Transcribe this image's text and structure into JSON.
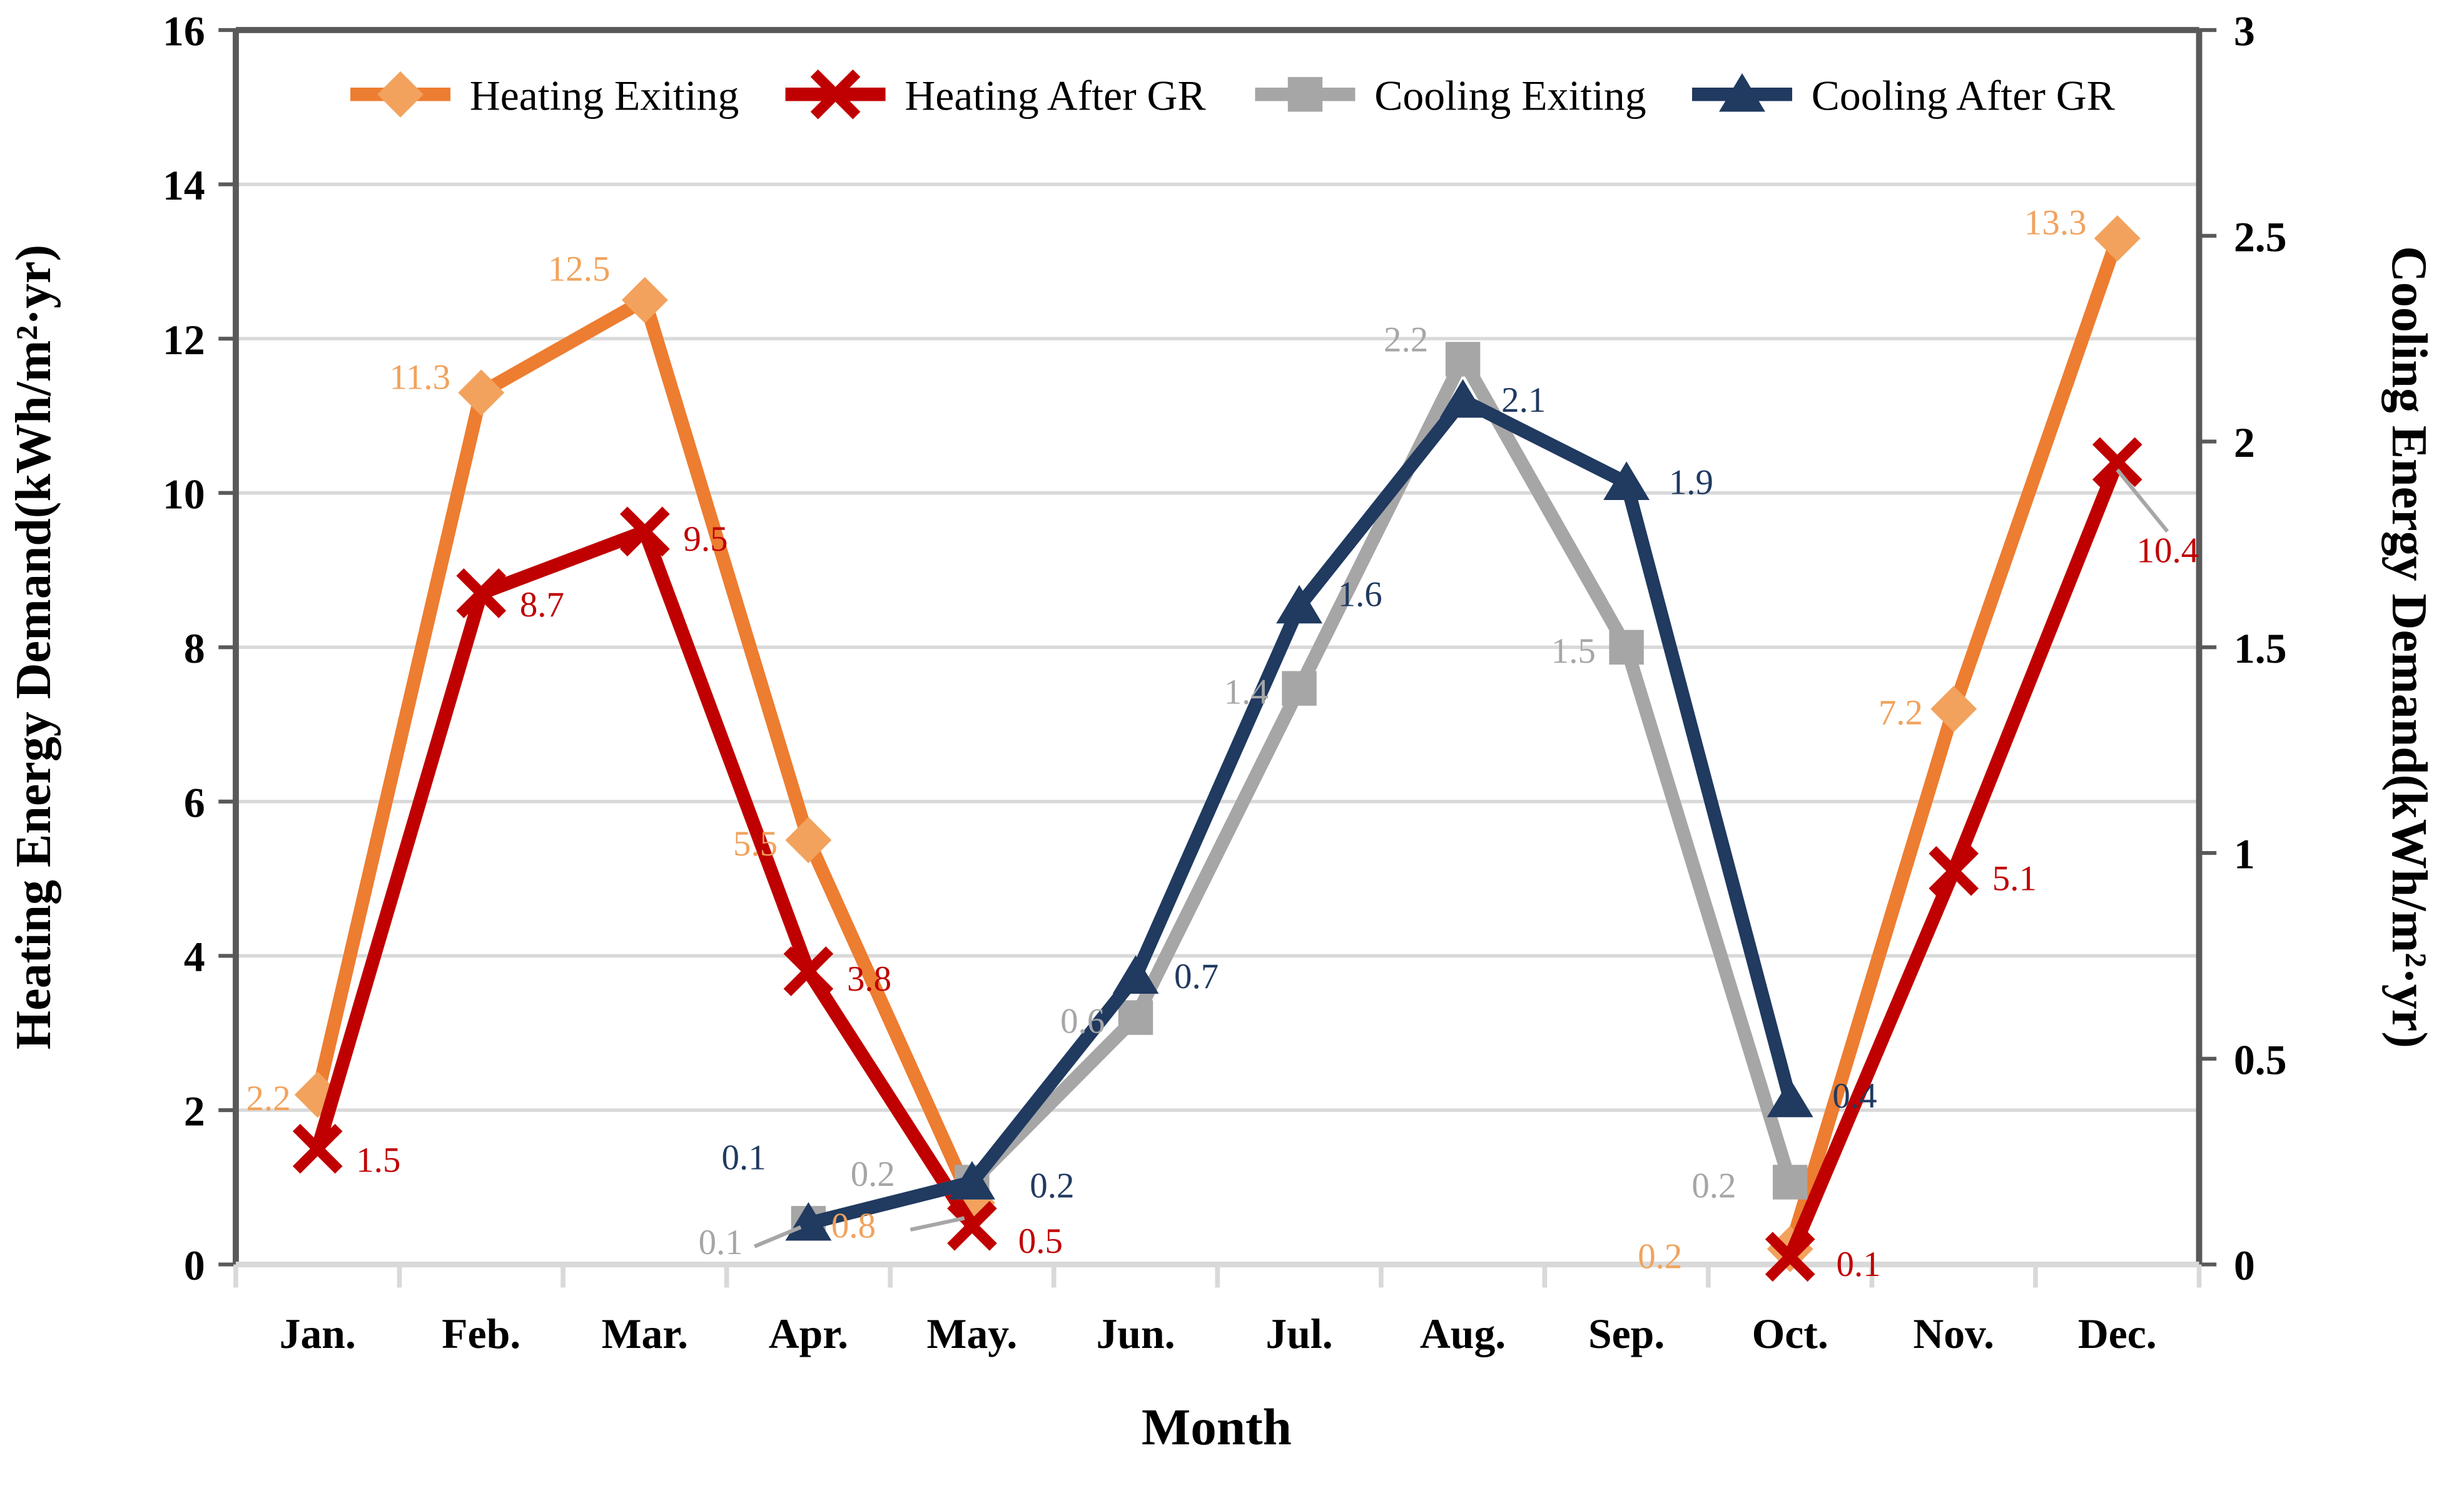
{
  "chart_data": {
    "type": "line",
    "xlabel": "Month",
    "categories": [
      "Jan.",
      "Feb.",
      "Mar.",
      "Apr.",
      "May.",
      "Jun.",
      "Jul.",
      "Aug.",
      "Sep.",
      "Oct.",
      "Nov.",
      "Dec."
    ],
    "left_axis": {
      "title": "Heating Energy Demand(kWh/m²·yr)",
      "min": 0,
      "max": 16,
      "step": 2,
      "tick_labels": [
        "0",
        "2",
        "4",
        "6",
        "8",
        "10",
        "12",
        "14",
        "16"
      ]
    },
    "right_axis": {
      "title": "Cooling Energy Demand(kWh/m²·yr)",
      "min": 0,
      "max": 3,
      "step": 0.5,
      "tick_labels": [
        "0",
        "0.5",
        "1",
        "1.5",
        "2",
        "2.5",
        "3"
      ]
    },
    "grid": true,
    "legend_position": "top",
    "colors": {
      "gridline": "#D9D9D9",
      "axis": "#595959",
      "text": "#000000",
      "background": "#FFFFFF"
    },
    "series": [
      {
        "name": "Heating Exiting",
        "axis": "left",
        "marker": "diamond",
        "color": "#ED7D31",
        "marker_color": "#F2A25C",
        "label_color": "#F2A25C",
        "points": [
          {
            "month": "Jan.",
            "value": 2.2,
            "label": "2.2",
            "label_offset": [
              -14,
              8,
              "end"
            ]
          },
          {
            "month": "Feb.",
            "value": 11.3,
            "label": "11.3",
            "label_offset": [
              -16,
              -2,
              "end"
            ]
          },
          {
            "month": "Mar.",
            "value": 12.5,
            "label": "12.5",
            "label_offset": [
              -18,
              -10,
              "end"
            ]
          },
          {
            "month": "Apr.",
            "value": 5.5,
            "label": "5.5",
            "label_offset": [
              -16,
              8,
              "end"
            ]
          },
          {
            "month": "May.",
            "value": 0.8,
            "label": "0.8",
            "label_offset": [
              -50,
              18,
              "end"
            ],
            "leader": [
              -32,
              14,
              -4,
              8
            ]
          },
          {
            "month": "Oct.",
            "value": 0.2,
            "label": "0.2",
            "label_offset": [
              -56,
              10,
              "end"
            ]
          },
          {
            "month": "Nov.",
            "value": 7.2,
            "label": "7.2",
            "label_offset": [
              -16,
              8,
              "end"
            ]
          },
          {
            "month": "Dec.",
            "value": 13.3,
            "label": "13.3",
            "label_offset": [
              -16,
              -2,
              "end"
            ]
          }
        ]
      },
      {
        "name": "Heating After GR",
        "axis": "left",
        "marker": "x",
        "color": "#C00000",
        "marker_color": "#C00000",
        "label_color": "#C00000",
        "points": [
          {
            "month": "Jan.",
            "value": 1.5,
            "label": "1.5",
            "label_offset": [
              20,
              12,
              "start"
            ]
          },
          {
            "month": "Feb.",
            "value": 8.7,
            "label": "8.7",
            "label_offset": [
              20,
              12,
              "start"
            ]
          },
          {
            "month": "Mar.",
            "value": 9.5,
            "label": "9.5",
            "label_offset": [
              20,
              10,
              "start"
            ]
          },
          {
            "month": "Apr.",
            "value": 3.8,
            "label": "3.8",
            "label_offset": [
              20,
              10,
              "start"
            ]
          },
          {
            "month": "May.",
            "value": 0.5,
            "label": "0.5",
            "label_offset": [
              24,
              14,
              "start"
            ]
          },
          {
            "month": "Oct.",
            "value": 0.1,
            "label": "0.1",
            "label_offset": [
              24,
              10,
              "start"
            ]
          },
          {
            "month": "Nov.",
            "value": 5.1,
            "label": "5.1",
            "label_offset": [
              20,
              10,
              "start"
            ]
          },
          {
            "month": "Dec.",
            "value": 10.4,
            "label": "10.4",
            "label_offset": [
              10,
              52,
              "start"
            ],
            "leader": [
              0,
              4,
              26,
              36
            ]
          }
        ]
      },
      {
        "name": "Cooling Exiting",
        "axis": "right",
        "marker": "square",
        "color": "#A6A6A6",
        "marker_color": "#A6A6A6",
        "label_color": "#A6A6A6",
        "points": [
          {
            "month": "Apr.",
            "value": 0.1,
            "label": "0.1",
            "label_offset": [
              -34,
              16,
              "end"
            ],
            "leader": [
              -28,
              12,
              -4,
              2
            ]
          },
          {
            "month": "May.",
            "value": 0.2,
            "label": "0.2",
            "label_offset": [
              -40,
              2,
              "end"
            ]
          },
          {
            "month": "Jun.",
            "value": 0.6,
            "label": "0.6",
            "label_offset": [
              -16,
              8,
              "end"
            ]
          },
          {
            "month": "Jul.",
            "value": 1.4,
            "label": "1.4",
            "label_offset": [
              -16,
              8,
              "end"
            ]
          },
          {
            "month": "Aug.",
            "value": 2.2,
            "label": "2.2",
            "label_offset": [
              -18,
              -4,
              "end"
            ]
          },
          {
            "month": "Sep.",
            "value": 1.5,
            "label": "1.5",
            "label_offset": [
              -16,
              8,
              "end"
            ]
          },
          {
            "month": "Oct.",
            "value": 0.2,
            "label": "0.2",
            "label_offset": [
              -28,
              8,
              "end"
            ]
          }
        ]
      },
      {
        "name": "Cooling After GR",
        "axis": "right",
        "marker": "triangle",
        "color": "#203A60",
        "marker_color": "#203A60",
        "label_color": "#203A60",
        "points": [
          {
            "month": "Apr.",
            "value": 0.1,
            "label": "0.1",
            "label_offset": [
              -22,
              -28,
              "end"
            ]
          },
          {
            "month": "May.",
            "value": 0.2,
            "label": "0.2",
            "label_offset": [
              30,
              8,
              "start"
            ]
          },
          {
            "month": "Jun.",
            "value": 0.7,
            "label": "0.7",
            "label_offset": [
              20,
              6,
              "start"
            ]
          },
          {
            "month": "Jul.",
            "value": 1.6,
            "label": "1.6",
            "label_offset": [
              20,
              0,
              "start"
            ]
          },
          {
            "month": "Aug.",
            "value": 2.1,
            "label": "2.1",
            "label_offset": [
              20,
              6,
              "start"
            ]
          },
          {
            "month": "Sep.",
            "value": 1.9,
            "label": "1.9",
            "label_offset": [
              22,
              6,
              "start"
            ]
          },
          {
            "month": "Oct.",
            "value": 0.4,
            "label": "0.4",
            "label_offset": [
              22,
              4,
              "start"
            ]
          }
        ]
      }
    ]
  }
}
